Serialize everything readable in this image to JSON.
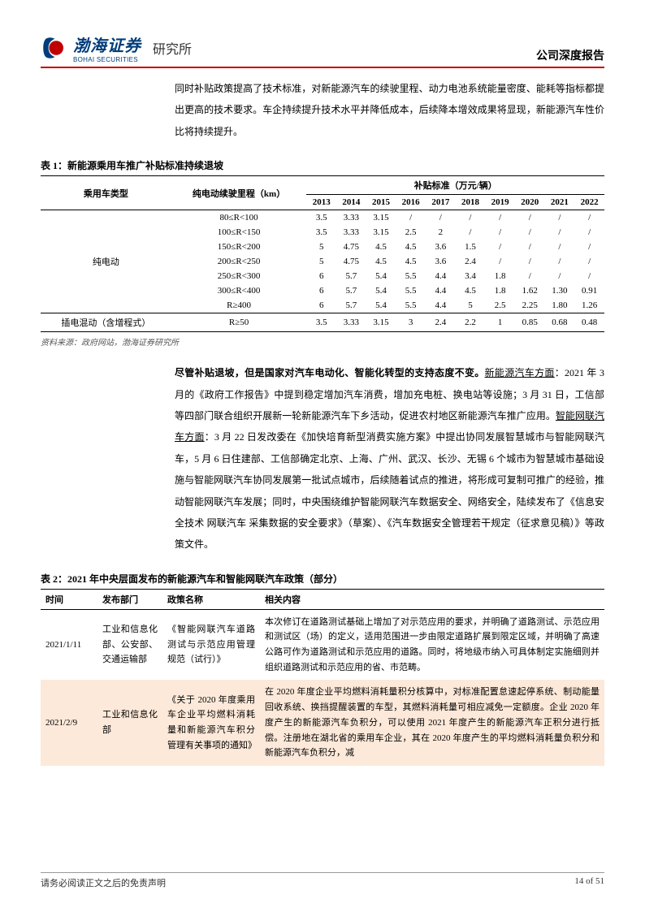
{
  "header": {
    "company_cn": "渤海证券",
    "company_en": "BOHAI SECURITIES",
    "institute": "研究所",
    "report_type": "公司深度报告"
  },
  "para1": "同时补贴政策提高了技术标准，对新能源汽车的续驶里程、动力电池系统能量密度、能耗等指标都提出更高的技术要求。车企持续提升技术水平并降低成本，后续降本增效成果将显现，新能源汽车性价比将持续提升。",
  "table1": {
    "title": "表 1：新能源乘用车推广补贴标准持续退坡",
    "col_type": "乘用车类型",
    "col_range": "纯电动续驶里程（km）",
    "col_subsidy": "补贴标准（万元/辆）",
    "years": [
      "2013",
      "2014",
      "2015",
      "2016",
      "2017",
      "2018",
      "2019",
      "2020",
      "2021",
      "2022"
    ],
    "type_bev": "纯电动",
    "type_phev": "插电混动（含增程式）",
    "rows_bev": [
      {
        "range": "80≤R<100",
        "vals": [
          "3.5",
          "3.33",
          "3.15",
          "/",
          "/",
          "/",
          "/",
          "/",
          "/",
          "/"
        ]
      },
      {
        "range": "100≤R<150",
        "vals": [
          "3.5",
          "3.33",
          "3.15",
          "2.5",
          "2",
          "/",
          "/",
          "/",
          "/",
          "/"
        ]
      },
      {
        "range": "150≤R<200",
        "vals": [
          "5",
          "4.75",
          "4.5",
          "4.5",
          "3.6",
          "1.5",
          "/",
          "/",
          "/",
          "/"
        ]
      },
      {
        "range": "200≤R<250",
        "vals": [
          "5",
          "4.75",
          "4.5",
          "4.5",
          "3.6",
          "2.4",
          "/",
          "/",
          "/",
          "/"
        ]
      },
      {
        "range": "250≤R<300",
        "vals": [
          "6",
          "5.7",
          "5.4",
          "5.5",
          "4.4",
          "3.4",
          "1.8",
          "/",
          "/",
          "/"
        ]
      },
      {
        "range": "300≤R<400",
        "vals": [
          "6",
          "5.7",
          "5.4",
          "5.5",
          "4.4",
          "4.5",
          "1.8",
          "1.62",
          "1.30",
          "0.91"
        ]
      },
      {
        "range": "R≥400",
        "vals": [
          "6",
          "5.7",
          "5.4",
          "5.5",
          "4.4",
          "5",
          "2.5",
          "2.25",
          "1.80",
          "1.26"
        ]
      }
    ],
    "row_phev": {
      "range": "R≥50",
      "vals": [
        "3.5",
        "3.33",
        "3.15",
        "3",
        "2.4",
        "2.2",
        "1",
        "0.85",
        "0.68",
        "0.48"
      ]
    },
    "source": "资料来源：政府网站，渤海证券研究所"
  },
  "para2": {
    "bold1": "尽管补贴退坡，但是国家对汽车电动化、智能化转型的支持态度不变。",
    "u1": "新能源汽车方面",
    "t1": "：2021 年 3 月的《政府工作报告》中提到稳定增加汽车消费，增加充电桩、换电站等设施；3 月 31 日，工信部等四部门联合组织开展新一轮新能源汽车下乡活动，促进农村地区新能源汽车推广应用。",
    "u2": "智能网联汽车方面",
    "t2": "：3 月 22 日发改委在《加快培育新型消费实施方案》中提出协同发展智慧城市与智能网联汽车，5 月 6 日住建部、工信部确定北京、上海、广州、武汉、长沙、无锡 6 个城市为智慧城市基础设施与智能网联汽车协同发展第一批试点城市，后续随着试点的推进，将形成可复制可推广的经验，推动智能网联汽车发展；同时，中央围绕维护智能网联汽车数据安全、网络安全，陆续发布了《信息安全技术 网联汽车 采集数据的安全要求》（草案）、《汽车数据安全管理若干规定（征求意见稿）》等政策文件。"
  },
  "table2": {
    "title": "表 2：2021 年中央层面发布的新能源汽车和智能网联汽车政策（部分）",
    "headers": [
      "时间",
      "发布部门",
      "政策名称",
      "相关内容"
    ],
    "rows": [
      {
        "date": "2021/1/11",
        "dept": "工业和信息化部、公安部、交通运输部",
        "policy": "《智能网联汽车道路测试与示范应用管理规范（试行）》",
        "content": "本次修订在道路测试基础上增加了对示范应用的要求，并明确了道路测试、示范应用和测试区（场）的定义，适用范围进一步由限定道路扩展到限定区域，并明确了高速公路可作为道路测试和示范应用的道路。同时，将地级市纳入可具体制定实施细则并组织道路测试和示范应用的省、市范畴。",
        "highlight": false
      },
      {
        "date": "2021/2/9",
        "dept": "工业和信息化部",
        "policy": "《关于 2020 年度乘用车企业平均燃料消耗量和新能源汽车积分管理有关事项的通知》",
        "content": "在 2020 年度企业平均燃料消耗量积分核算中，对标准配置怠速起停系统、制动能量回收系统、换挡提醒装置的车型，其燃料消耗量可相应减免一定额度。企业 2020 年度产生的新能源汽车负积分，可以使用 2021 年度产生的新能源汽车正积分进行抵偿。注册地在湖北省的乘用车企业，其在 2020 年度产生的平均燃料消耗量负积分和新能源汽车负积分，减",
        "highlight": true
      }
    ]
  },
  "footer": {
    "disclaimer": "请务必阅读正文之后的免责声明",
    "page": "14 of 51"
  },
  "colors": {
    "accent_red": "#c00000",
    "logo_blue": "#003d7a",
    "highlight_bg": "#fde9d9"
  }
}
